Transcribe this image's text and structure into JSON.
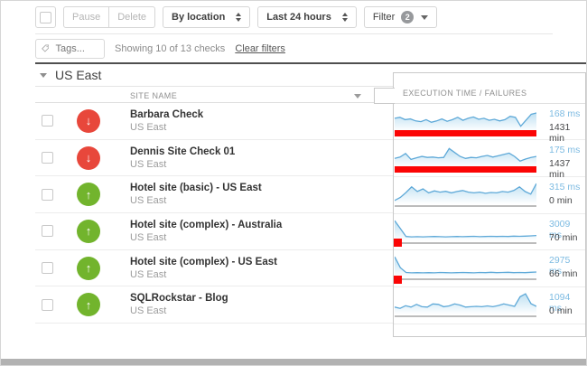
{
  "toolbar": {
    "pause": "Pause",
    "delete": "Delete",
    "location_select": "By location",
    "time_select": "Last 24 hours",
    "filter_label": "Filter",
    "filter_count": "2"
  },
  "tagsbar": {
    "tags_placeholder": "Tags...",
    "showing": "Showing 10 of 13 checks",
    "clear": "Clear filters"
  },
  "section": {
    "title": "US East"
  },
  "table": {
    "site_name_header": "SITE NAME",
    "exec_header": "EXECUTION TIME / FAILURES",
    "rows": [
      {
        "name": "Barbara Check",
        "location": "US East",
        "status": "down",
        "ms": "168 ms",
        "min": "1431 min",
        "failure": "full",
        "spark": [
          0.55,
          0.6,
          0.48,
          0.52,
          0.42,
          0.38,
          0.48,
          0.35,
          0.42,
          0.52,
          0.4,
          0.48,
          0.6,
          0.45,
          0.55,
          0.62,
          0.5,
          0.55,
          0.45,
          0.5,
          0.42,
          0.48,
          0.65,
          0.6,
          0.15,
          0.45,
          0.75,
          0.82
        ]
      },
      {
        "name": "Dennis Site Check 01",
        "location": "US East",
        "status": "down",
        "ms": "175 ms",
        "min": "1437 min",
        "failure": "full",
        "spark": [
          0.35,
          0.42,
          0.6,
          0.3,
          0.38,
          0.45,
          0.4,
          0.42,
          0.38,
          0.4,
          0.85,
          0.65,
          0.45,
          0.35,
          0.4,
          0.38,
          0.45,
          0.5,
          0.42,
          0.48,
          0.55,
          0.62,
          0.45,
          0.22,
          0.32,
          0.4,
          0.45
        ]
      },
      {
        "name": "Hotel site (basic) - US East",
        "location": "US East",
        "status": "up",
        "ms": "315 ms",
        "min": "0 min",
        "failure": "none",
        "spark": [
          0.1,
          0.25,
          0.5,
          0.78,
          0.55,
          0.68,
          0.48,
          0.58,
          0.52,
          0.56,
          0.48,
          0.55,
          0.6,
          0.52,
          0.48,
          0.52,
          0.46,
          0.5,
          0.48,
          0.55,
          0.52,
          0.6,
          0.78,
          0.55,
          0.42,
          0.95
        ]
      },
      {
        "name": "Hotel site (complex) - Australia",
        "location": "US East",
        "status": "up",
        "ms": "3009 ms",
        "min": "70 min",
        "failure": "partial",
        "spark": [
          0.95,
          0.55,
          0.15,
          0.13,
          0.14,
          0.13,
          0.14,
          0.15,
          0.14,
          0.13,
          0.14,
          0.15,
          0.14,
          0.15,
          0.16,
          0.14,
          0.15,
          0.16,
          0.15,
          0.16,
          0.15,
          0.17,
          0.16,
          0.17,
          0.18,
          0.2
        ]
      },
      {
        "name": "Hotel site (complex) - US East",
        "location": "US East",
        "status": "up",
        "ms": "2975 ms",
        "min": "66 min",
        "failure": "partial",
        "spark": [
          0.95,
          0.4,
          0.16,
          0.14,
          0.15,
          0.14,
          0.15,
          0.14,
          0.16,
          0.15,
          0.14,
          0.15,
          0.16,
          0.15,
          0.14,
          0.16,
          0.15,
          0.17,
          0.15,
          0.16,
          0.17,
          0.15,
          0.16,
          0.15,
          0.17,
          0.18
        ]
      },
      {
        "name": "SQLRockstar - Blog",
        "location": "US East",
        "status": "up",
        "ms": "1094 ms",
        "min": "0 min",
        "failure": "none",
        "spark": [
          0.28,
          0.22,
          0.35,
          0.28,
          0.42,
          0.3,
          0.28,
          0.44,
          0.42,
          0.3,
          0.34,
          0.44,
          0.38,
          0.28,
          0.3,
          0.32,
          0.3,
          0.34,
          0.3,
          0.36,
          0.44,
          0.38,
          0.32,
          0.8,
          0.95,
          0.45,
          0.32
        ]
      }
    ]
  },
  "colors": {
    "up_green": "#72b42d",
    "down_red": "#e8473b",
    "failure_red": "#fb0505",
    "spark_stroke": "#5ea9d8",
    "spark_fill_top": "#bfe0f2",
    "ms_blue": "#7dbbe2"
  }
}
